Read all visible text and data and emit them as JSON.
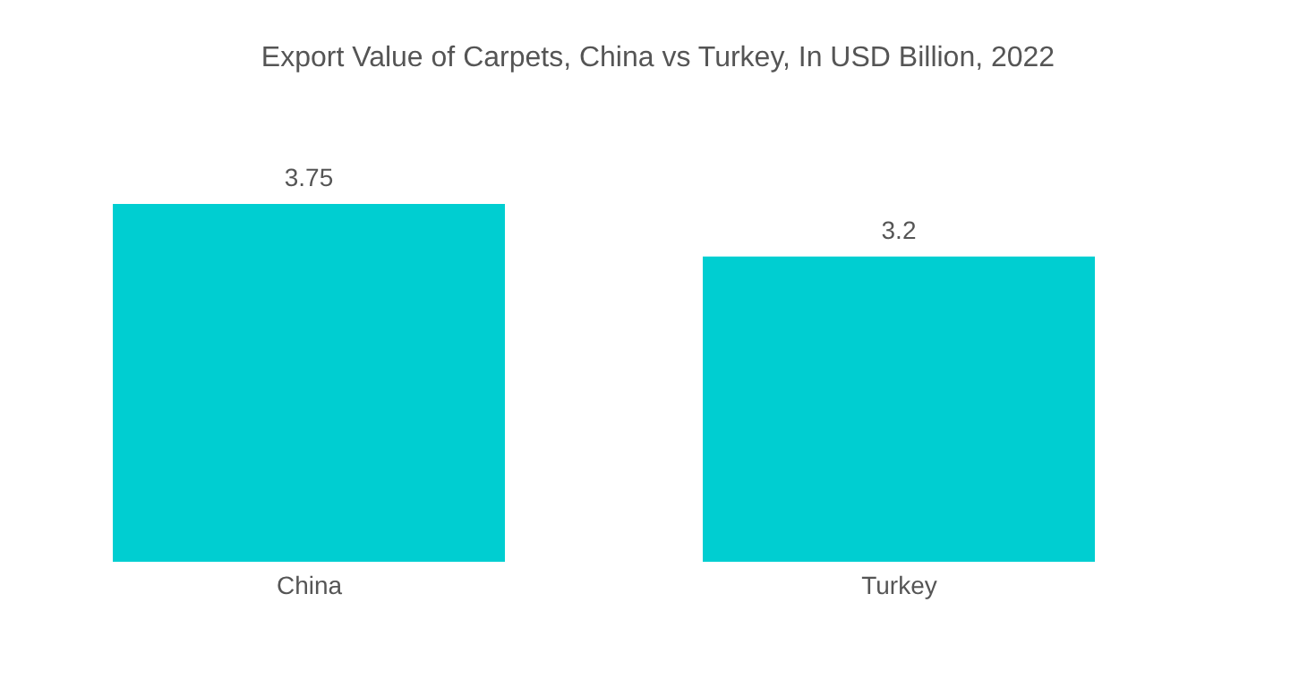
{
  "chart_data": {
    "type": "bar",
    "title": "Export Value of Carpets, China vs Turkey, In USD Billion, 2022",
    "categories": [
      "China",
      "Turkey"
    ],
    "values": [
      3.75,
      3.2
    ],
    "color": "#00ced1",
    "data_labels": true,
    "tick_labels": "x"
  }
}
